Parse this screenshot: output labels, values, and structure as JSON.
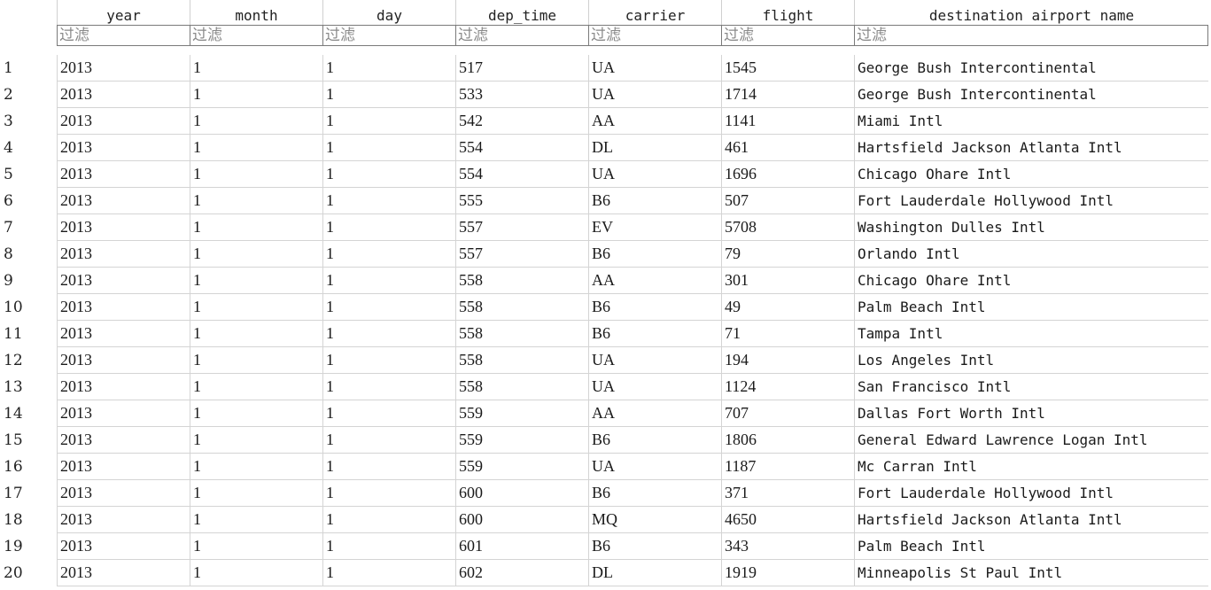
{
  "table": {
    "columns": [
      "year",
      "month",
      "day",
      "dep_time",
      "carrier",
      "flight",
      "destination airport name"
    ],
    "filter_placeholder": "过滤",
    "rows": [
      {
        "n": "1",
        "cells": [
          "2013",
          "1",
          "1",
          "517",
          "UA",
          "1545",
          "George Bush Intercontinental"
        ]
      },
      {
        "n": "2",
        "cells": [
          "2013",
          "1",
          "1",
          "533",
          "UA",
          "1714",
          "George Bush Intercontinental"
        ]
      },
      {
        "n": "3",
        "cells": [
          "2013",
          "1",
          "1",
          "542",
          "AA",
          "1141",
          "Miami Intl"
        ]
      },
      {
        "n": "4",
        "cells": [
          "2013",
          "1",
          "1",
          "554",
          "DL",
          "461",
          "Hartsfield Jackson Atlanta Intl"
        ]
      },
      {
        "n": "5",
        "cells": [
          "2013",
          "1",
          "1",
          "554",
          "UA",
          "1696",
          "Chicago Ohare Intl"
        ]
      },
      {
        "n": "6",
        "cells": [
          "2013",
          "1",
          "1",
          "555",
          "B6",
          "507",
          "Fort Lauderdale Hollywood Intl"
        ]
      },
      {
        "n": "7",
        "cells": [
          "2013",
          "1",
          "1",
          "557",
          "EV",
          "5708",
          "Washington Dulles Intl"
        ]
      },
      {
        "n": "8",
        "cells": [
          "2013",
          "1",
          "1",
          "557",
          "B6",
          "79",
          "Orlando Intl"
        ]
      },
      {
        "n": "9",
        "cells": [
          "2013",
          "1",
          "1",
          "558",
          "AA",
          "301",
          "Chicago Ohare Intl"
        ]
      },
      {
        "n": "10",
        "cells": [
          "2013",
          "1",
          "1",
          "558",
          "B6",
          "49",
          "Palm Beach Intl"
        ]
      },
      {
        "n": "11",
        "cells": [
          "2013",
          "1",
          "1",
          "558",
          "B6",
          "71",
          "Tampa Intl"
        ]
      },
      {
        "n": "12",
        "cells": [
          "2013",
          "1",
          "1",
          "558",
          "UA",
          "194",
          "Los Angeles Intl"
        ]
      },
      {
        "n": "13",
        "cells": [
          "2013",
          "1",
          "1",
          "558",
          "UA",
          "1124",
          "San Francisco Intl"
        ]
      },
      {
        "n": "14",
        "cells": [
          "2013",
          "1",
          "1",
          "559",
          "AA",
          "707",
          "Dallas Fort Worth Intl"
        ]
      },
      {
        "n": "15",
        "cells": [
          "2013",
          "1",
          "1",
          "559",
          "B6",
          "1806",
          "General Edward Lawrence Logan Intl"
        ]
      },
      {
        "n": "16",
        "cells": [
          "2013",
          "1",
          "1",
          "559",
          "UA",
          "1187",
          "Mc Carran Intl"
        ]
      },
      {
        "n": "17",
        "cells": [
          "2013",
          "1",
          "1",
          "600",
          "B6",
          "371",
          "Fort Lauderdale Hollywood Intl"
        ]
      },
      {
        "n": "18",
        "cells": [
          "2013",
          "1",
          "1",
          "600",
          "MQ",
          "4650",
          "Hartsfield Jackson Atlanta Intl"
        ]
      },
      {
        "n": "19",
        "cells": [
          "2013",
          "1",
          "1",
          "601",
          "B6",
          "343",
          "Palm Beach Intl"
        ]
      },
      {
        "n": "20",
        "cells": [
          "2013",
          "1",
          "1",
          "602",
          "DL",
          "1919",
          "Minneapolis St Paul Intl"
        ]
      }
    ]
  }
}
